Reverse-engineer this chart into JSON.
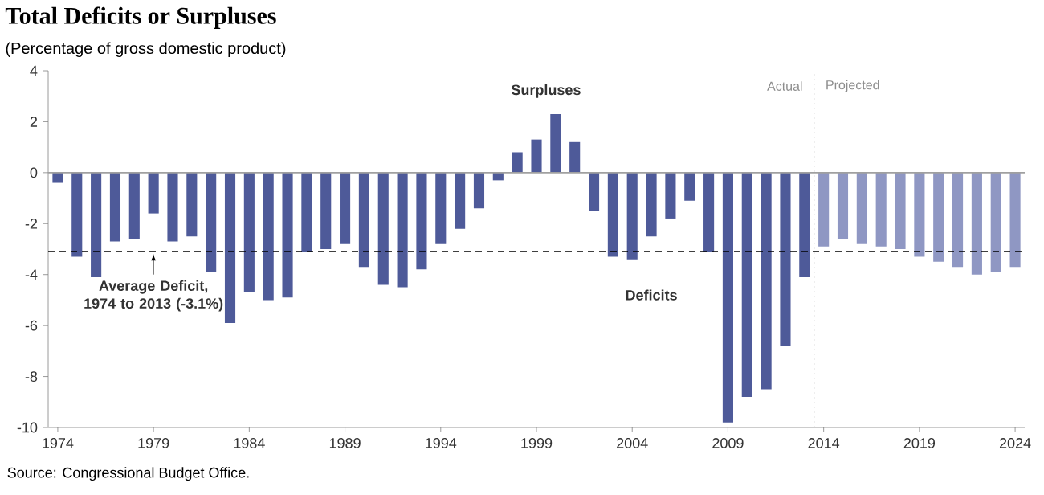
{
  "chart_data": {
    "type": "bar",
    "title": "Total Deficits or Surpluses",
    "subtitle": "(Percentage of gross domestic product)",
    "series": [
      {
        "color": "#4e5a99",
        "x": [
          1974,
          1975,
          1976,
          1977,
          1978,
          1979,
          1980,
          1981,
          1982,
          1983,
          1984,
          1985,
          1986,
          1987,
          1988,
          1989,
          1990,
          1991,
          1992,
          1993,
          1994,
          1995,
          1996,
          1997,
          1998,
          1999,
          2000,
          2001,
          2002,
          2003,
          2004,
          2005,
          2006,
          2007,
          2008,
          2009,
          2010,
          2011,
          2012,
          2013
        ],
        "values": [
          -0.4,
          -3.3,
          -4.1,
          -2.7,
          -2.6,
          -1.6,
          -2.7,
          -2.5,
          -3.9,
          -5.9,
          -4.7,
          -5.0,
          -4.9,
          -3.1,
          -3.0,
          -2.8,
          -3.7,
          -4.4,
          -4.5,
          -3.8,
          -2.8,
          -2.2,
          -1.4,
          -0.3,
          0.8,
          1.3,
          2.3,
          1.2,
          -1.5,
          -3.3,
          -3.4,
          -2.5,
          -1.8,
          -1.1,
          -3.1,
          -9.8,
          -8.8,
          -8.5,
          -6.8,
          -4.1
        ]
      },
      {
        "color": "#8f97c3",
        "x": [
          2014,
          2015,
          2016,
          2017,
          2018,
          2019,
          2020,
          2021,
          2022,
          2023,
          2024
        ],
        "values": [
          -2.9,
          -2.6,
          -2.8,
          -2.9,
          -3.0,
          -3.3,
          -3.5,
          -3.7,
          -4.0,
          -3.9,
          -3.7
        ]
      }
    ],
    "xlim": [
      1973.5,
      2024.5
    ],
    "xticks": [
      1974,
      1979,
      1984,
      1989,
      1994,
      1999,
      2004,
      2009,
      2014,
      2019,
      2024
    ],
    "ylim": [
      -10,
      4
    ],
    "yticks": [
      -10,
      -8,
      -6,
      -4,
      -2,
      0,
      2,
      4
    ],
    "ref_lines": [
      {
        "axis": "y",
        "value": 0,
        "color": "#a0a0a0",
        "line_style": "solid"
      },
      {
        "axis": "y",
        "value": -3.1,
        "color": "#000000",
        "line_style": "dashed",
        "label": "Average Deficit, 1974 to 2013 (-3.1%)"
      },
      {
        "axis": "x",
        "value": 2013.5,
        "color": "#a0a0a0",
        "line_style": "dotted"
      }
    ],
    "annotations": [
      "Surpluses",
      "Deficits",
      "Actual",
      "Projected",
      "Source:    Congressional Budget Office."
    ],
    "grid": false
  }
}
